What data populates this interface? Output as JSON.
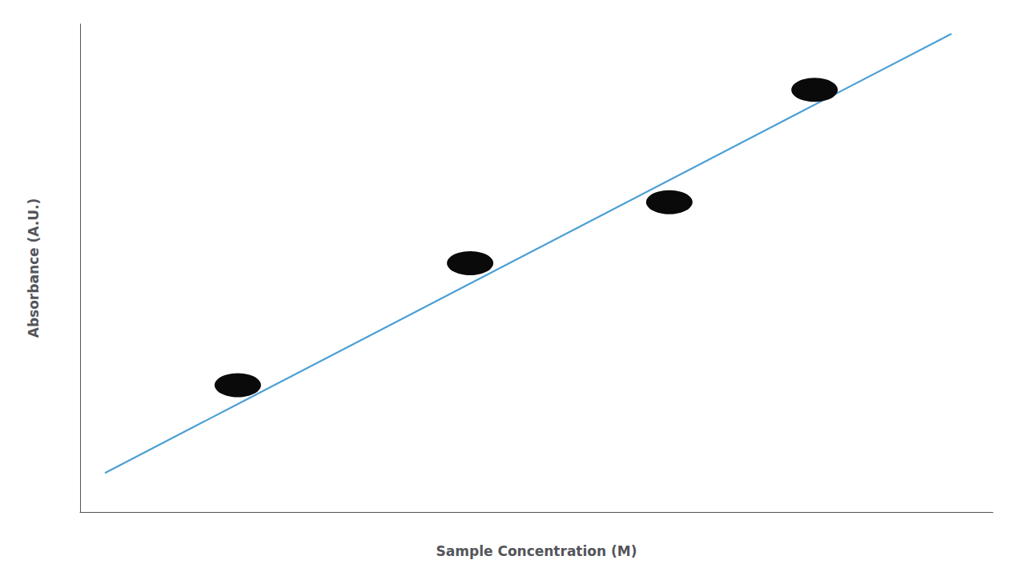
{
  "chart_data": {
    "type": "scatter",
    "xlabel": "Sample Concentration (M)",
    "ylabel": "Absorbance (A.U.)",
    "xlim": [
      0,
      11
    ],
    "ylim": [
      0,
      10
    ],
    "grid": false,
    "tick_labels": false,
    "series": [
      {
        "type": "line",
        "color": "#4b9fd5",
        "x": [
          0.3,
          10.5
        ],
        "values": [
          0.8,
          9.8
        ]
      },
      {
        "type": "scatter",
        "color": "#0a0a0a",
        "x": [
          1.9,
          4.7,
          7.1,
          8.85
        ],
        "values": [
          2.6,
          5.1,
          6.35,
          8.65
        ]
      }
    ]
  }
}
